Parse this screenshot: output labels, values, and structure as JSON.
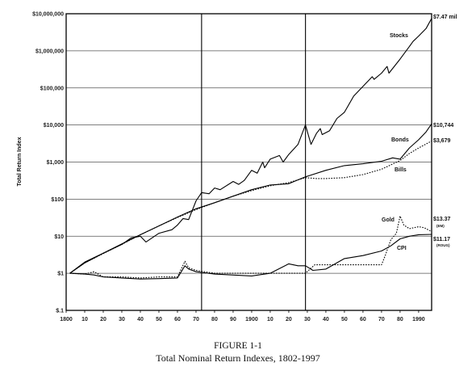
{
  "chart_data": {
    "type": "line",
    "caption_label": "FIGURE 1-1",
    "caption_title": "Total Nominal Return Indexes, 1802-1997",
    "ylabel": "Total Return Index",
    "y_scale": "log",
    "ylim": [
      0.1,
      10000000
    ],
    "xlim": [
      1800,
      1997
    ],
    "y_ticks": [
      {
        "value": 10000000,
        "label": "$10,000,000"
      },
      {
        "value": 1000000,
        "label": "$1,000,000"
      },
      {
        "value": 100000,
        "label": "$100,000"
      },
      {
        "value": 10000,
        "label": "$10,000"
      },
      {
        "value": 1000,
        "label": "$1,000"
      },
      {
        "value": 100,
        "label": "$100"
      },
      {
        "value": 10,
        "label": "$10"
      },
      {
        "value": 1,
        "label": "$1"
      },
      {
        "value": 0.1,
        "label": "$.1"
      }
    ],
    "x_ticks": [
      {
        "value": 1800,
        "label": "1800"
      },
      {
        "value": 1810,
        "label": "10"
      },
      {
        "value": 1820,
        "label": "20"
      },
      {
        "value": 1830,
        "label": "30"
      },
      {
        "value": 1840,
        "label": "40"
      },
      {
        "value": 1850,
        "label": "50"
      },
      {
        "value": 1860,
        "label": "60"
      },
      {
        "value": 1870,
        "label": "70"
      },
      {
        "value": 1880,
        "label": "80"
      },
      {
        "value": 1890,
        "label": "90"
      },
      {
        "value": 1900,
        "label": "1900"
      },
      {
        "value": 1910,
        "label": "10"
      },
      {
        "value": 1920,
        "label": "20"
      },
      {
        "value": 1930,
        "label": "30"
      },
      {
        "value": 1940,
        "label": "40"
      },
      {
        "value": 1950,
        "label": "50"
      },
      {
        "value": 1960,
        "label": "60"
      },
      {
        "value": 1970,
        "label": "70"
      },
      {
        "value": 1980,
        "label": "80"
      },
      {
        "value": 1990,
        "label": "1990"
      }
    ],
    "reference_lines_x": [
      1873,
      1929
    ],
    "grid": "horizontal",
    "series": [
      {
        "name": "Stocks",
        "end_label": "$7.47 mil",
        "style": "solid",
        "color": "#000000",
        "points": [
          [
            1802,
            1
          ],
          [
            1810,
            2.0
          ],
          [
            1820,
            3.5
          ],
          [
            1830,
            6
          ],
          [
            1835,
            9
          ],
          [
            1840,
            10
          ],
          [
            1843,
            7
          ],
          [
            1850,
            12
          ],
          [
            1857,
            15
          ],
          [
            1860,
            20
          ],
          [
            1863,
            30
          ],
          [
            1866,
            28
          ],
          [
            1870,
            90
          ],
          [
            1873,
            150
          ],
          [
            1877,
            140
          ],
          [
            1880,
            200
          ],
          [
            1883,
            180
          ],
          [
            1890,
            300
          ],
          [
            1893,
            250
          ],
          [
            1896,
            320
          ],
          [
            1900,
            600
          ],
          [
            1903,
            500
          ],
          [
            1906,
            1000
          ],
          [
            1907,
            700
          ],
          [
            1910,
            1200
          ],
          [
            1915,
            1500
          ],
          [
            1917,
            1000
          ],
          [
            1920,
            1600
          ],
          [
            1925,
            3000
          ],
          [
            1929,
            10000
          ],
          [
            1932,
            3000
          ],
          [
            1935,
            6000
          ],
          [
            1937,
            8000
          ],
          [
            1938,
            5500
          ],
          [
            1942,
            7000
          ],
          [
            1946,
            15000
          ],
          [
            1950,
            22000
          ],
          [
            1955,
            60000
          ],
          [
            1960,
            110000
          ],
          [
            1965,
            200000
          ],
          [
            1966,
            170000
          ],
          [
            1970,
            250000
          ],
          [
            1973,
            380000
          ],
          [
            1974,
            250000
          ],
          [
            1980,
            600000
          ],
          [
            1985,
            1300000
          ],
          [
            1987,
            1800000
          ],
          [
            1990,
            2500000
          ],
          [
            1994,
            4000000
          ],
          [
            1997,
            7470000
          ]
        ]
      },
      {
        "name": "Bonds",
        "end_label": "$10,744",
        "style": "solid",
        "color": "#000000",
        "points": [
          [
            1802,
            1
          ],
          [
            1810,
            1.9
          ],
          [
            1820,
            3.5
          ],
          [
            1830,
            6.2
          ],
          [
            1840,
            11
          ],
          [
            1850,
            19
          ],
          [
            1860,
            33
          ],
          [
            1870,
            55
          ],
          [
            1880,
            80
          ],
          [
            1890,
            120
          ],
          [
            1900,
            180
          ],
          [
            1910,
            240
          ],
          [
            1920,
            260
          ],
          [
            1929,
            400
          ],
          [
            1940,
            600
          ],
          [
            1950,
            800
          ],
          [
            1960,
            900
          ],
          [
            1970,
            1050
          ],
          [
            1976,
            1300
          ],
          [
            1980,
            1200
          ],
          [
            1985,
            2400
          ],
          [
            1990,
            4000
          ],
          [
            1994,
            6500
          ],
          [
            1997,
            10744
          ]
        ]
      },
      {
        "name": "Bills",
        "end_label": "$3,679",
        "style": "dotted",
        "color": "#000000",
        "points": [
          [
            1802,
            1
          ],
          [
            1810,
            1.9
          ],
          [
            1820,
            3.4
          ],
          [
            1830,
            6.0
          ],
          [
            1840,
            11
          ],
          [
            1850,
            19
          ],
          [
            1860,
            32
          ],
          [
            1870,
            52
          ],
          [
            1880,
            80
          ],
          [
            1890,
            120
          ],
          [
            1900,
            170
          ],
          [
            1910,
            230
          ],
          [
            1920,
            280
          ],
          [
            1929,
            380
          ],
          [
            1935,
            360
          ],
          [
            1940,
            360
          ],
          [
            1950,
            380
          ],
          [
            1960,
            460
          ],
          [
            1970,
            640
          ],
          [
            1980,
            1100
          ],
          [
            1985,
            1700
          ],
          [
            1990,
            2400
          ],
          [
            1997,
            3679
          ]
        ]
      },
      {
        "name": "Gold",
        "end_label": "$13.37",
        "end_sublabel": "(EM)",
        "style": "dotted",
        "color": "#000000",
        "points": [
          [
            1802,
            1
          ],
          [
            1810,
            0.95
          ],
          [
            1815,
            1.1
          ],
          [
            1820,
            0.8
          ],
          [
            1830,
            0.8
          ],
          [
            1840,
            0.75
          ],
          [
            1850,
            0.8
          ],
          [
            1860,
            0.8
          ],
          [
            1862,
            1.3
          ],
          [
            1864,
            2.1
          ],
          [
            1866,
            1.4
          ],
          [
            1870,
            1.2
          ],
          [
            1880,
            1.0
          ],
          [
            1900,
            1.0
          ],
          [
            1920,
            1.0
          ],
          [
            1929,
            1.0
          ],
          [
            1934,
            1.7
          ],
          [
            1950,
            1.7
          ],
          [
            1970,
            1.7
          ],
          [
            1972,
            3
          ],
          [
            1975,
            8
          ],
          [
            1978,
            12
          ],
          [
            1980,
            35
          ],
          [
            1982,
            20
          ],
          [
            1985,
            16
          ],
          [
            1990,
            18
          ],
          [
            1993,
            17
          ],
          [
            1997,
            13.37
          ]
        ]
      },
      {
        "name": "CPI",
        "end_label": "$11.17",
        "end_sublabel": "(ROUG)",
        "style": "solid",
        "color": "#000000",
        "points": [
          [
            1802,
            1
          ],
          [
            1810,
            0.95
          ],
          [
            1815,
            0.9
          ],
          [
            1820,
            0.8
          ],
          [
            1830,
            0.75
          ],
          [
            1840,
            0.7
          ],
          [
            1850,
            0.72
          ],
          [
            1860,
            0.75
          ],
          [
            1864,
            1.6
          ],
          [
            1866,
            1.3
          ],
          [
            1870,
            1.1
          ],
          [
            1880,
            0.95
          ],
          [
            1900,
            0.85
          ],
          [
            1910,
            1.0
          ],
          [
            1918,
            1.6
          ],
          [
            1920,
            1.8
          ],
          [
            1925,
            1.6
          ],
          [
            1929,
            1.6
          ],
          [
            1933,
            1.2
          ],
          [
            1940,
            1.3
          ],
          [
            1945,
            1.8
          ],
          [
            1950,
            2.5
          ],
          [
            1960,
            3.0
          ],
          [
            1970,
            4.0
          ],
          [
            1975,
            5.5
          ],
          [
            1980,
            8.5
          ],
          [
            1985,
            10
          ],
          [
            1990,
            11
          ],
          [
            1997,
            11.17
          ]
        ]
      }
    ]
  }
}
